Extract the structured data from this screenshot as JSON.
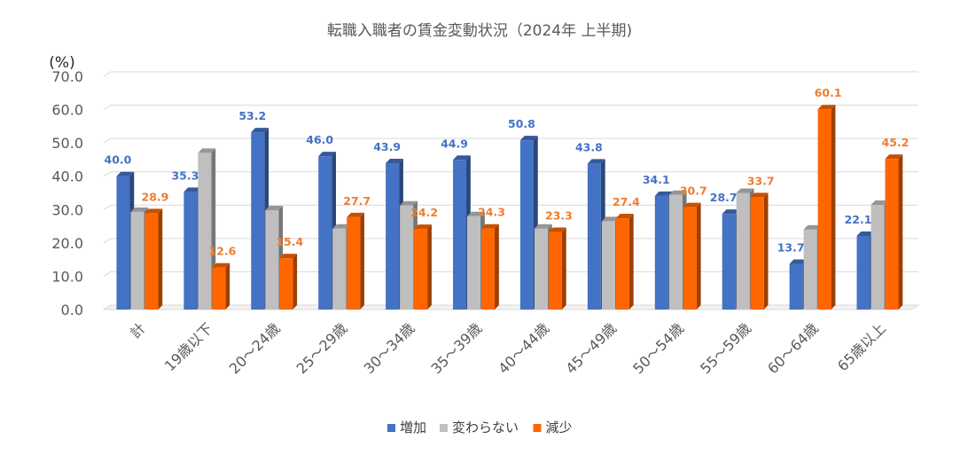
{
  "chart_data": {
    "type": "bar",
    "title": "転職入職者の賃金変動状況（2024年 上半期)",
    "ylabel": "(%)",
    "ylim": [
      0,
      70
    ],
    "yticks": [
      "0.0",
      "10.0",
      "20.0",
      "30.0",
      "40.0",
      "50.0",
      "60.0",
      "70.0"
    ],
    "grid": true,
    "legend_position": "bottom",
    "categories": [
      "計",
      "19歳以下",
      "20～24歳",
      "25～29歳",
      "30～34歳",
      "35～39歳",
      "40～44歳",
      "45～49歳",
      "50～54歳",
      "55～59歳",
      "60～64歳",
      "65歳以上"
    ],
    "series": [
      {
        "name": "増加",
        "color": "#4472C4",
        "values": [
          40.0,
          35.3,
          53.2,
          46.0,
          43.9,
          44.9,
          50.8,
          43.8,
          34.1,
          28.7,
          13.7,
          22.1
        ],
        "labels": [
          "40.0",
          "35.3",
          "53.2",
          "46.0",
          "43.9",
          "44.9",
          "50.8",
          "43.8",
          "34.1",
          "28.7",
          "13.7",
          "22.1"
        ]
      },
      {
        "name": "変わらない",
        "color": "#BFBFBF",
        "values": [
          29.3,
          47.0,
          29.8,
          24.3,
          31.2,
          28.0,
          24.3,
          26.5,
          34.4,
          35.0,
          24.0,
          31.4
        ],
        "labels": null
      },
      {
        "name": "減少",
        "color": "#FF6600",
        "values": [
          28.9,
          12.6,
          15.4,
          27.7,
          24.2,
          24.3,
          23.3,
          27.4,
          30.7,
          33.7,
          60.1,
          45.2
        ],
        "labels": [
          "28.9",
          "12.6",
          "15.4",
          "27.7",
          "24.2",
          "24.3",
          "23.3",
          "27.4",
          "30.7",
          "33.7",
          "60.1",
          "45.2"
        ]
      }
    ]
  }
}
